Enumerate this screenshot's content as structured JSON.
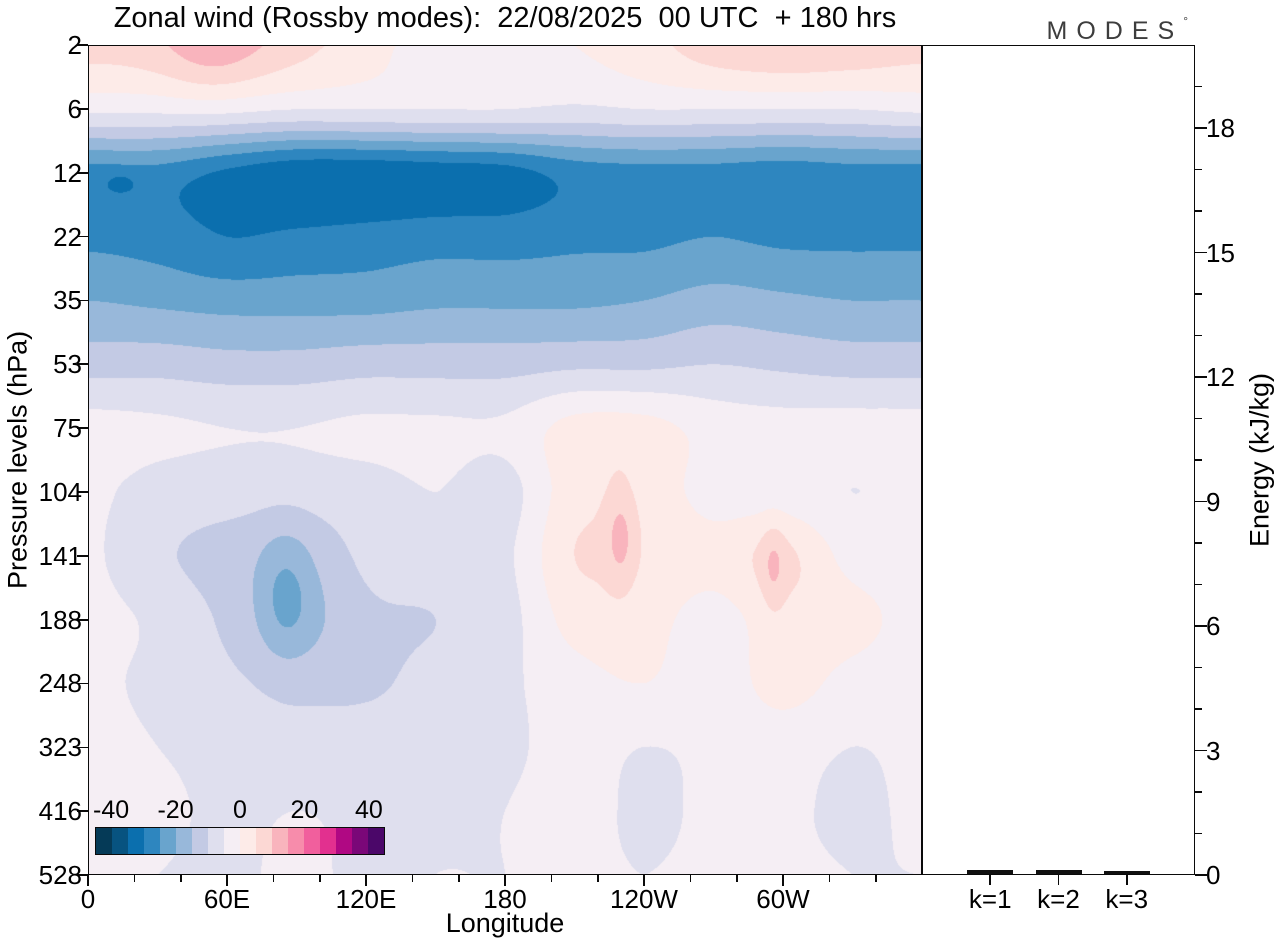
{
  "title": "Zonal wind (Rossby modes):  22/08/2025  00 UTC  + 180 hrs",
  "logo": {
    "text": "MODES",
    "mark": "°"
  },
  "axes": {
    "pressure": {
      "label": "Pressure levels (hPa)",
      "tick_labels": [
        "2",
        "6",
        "12",
        "22",
        "35",
        "53",
        "75",
        "104",
        "141",
        "188",
        "248",
        "323",
        "416",
        "528"
      ]
    },
    "longitude": {
      "label": "Longitude",
      "major_ticks": [
        {
          "deg": 0,
          "label": "0"
        },
        {
          "deg": 60,
          "label": "60E"
        },
        {
          "deg": 120,
          "label": "120E"
        },
        {
          "deg": 180,
          "label": "180"
        },
        {
          "deg": 240,
          "label": "120W"
        },
        {
          "deg": 300,
          "label": "60W"
        }
      ],
      "minor_tick_degs": [
        20,
        40,
        80,
        100,
        140,
        160,
        200,
        220,
        260,
        280,
        320,
        340
      ],
      "range_deg": [
        0,
        360
      ]
    },
    "energy": {
      "label": "Energy (kJ/kg)",
      "major_ticks": [
        0,
        3,
        6,
        9,
        12,
        15,
        18
      ],
      "minor_step": 1,
      "range": [
        0,
        20
      ]
    }
  },
  "colorbar": {
    "tick_labels": [
      "-40",
      "-20",
      "0",
      "20",
      "40"
    ],
    "tick_values": [
      -40,
      -20,
      0,
      20,
      40
    ],
    "min": -45,
    "max": 45,
    "step": 5,
    "colors": [
      "#053a57",
      "#075380",
      "#0b6fae",
      "#2e86bf",
      "#69a4cd",
      "#98b8da",
      "#c3cae4",
      "#dfdfee",
      "#f5eef4",
      "#fdebe8",
      "#fcd8d4",
      "#f9b4bd",
      "#f78cab",
      "#f15f9d",
      "#e2308f",
      "#b00883",
      "#7a0778",
      "#4b0769"
    ]
  },
  "chart_data": {
    "type": "heatmap",
    "title": "Zonal wind (Rossby modes):  22/08/2025  00 UTC  + 180 hrs",
    "xlabel": "Longitude",
    "ylabel": "Pressure levels (hPa)",
    "x_deg": [
      0,
      30,
      60,
      90,
      120,
      150,
      180,
      210,
      240,
      270,
      300,
      330,
      360
    ],
    "pressure_levels_hPa": [
      2,
      6,
      12,
      22,
      35,
      53,
      75,
      104,
      141,
      188,
      248,
      323,
      416,
      528
    ],
    "contour_interval": 5,
    "contour_range": [
      -45,
      45
    ],
    "wind_grid": [
      [
        7,
        8,
        11,
        7,
        2,
        -2,
        -2,
        0,
        3,
        8,
        10,
        9,
        7
      ],
      [
        -4,
        -4,
        -4,
        -5,
        -5,
        -5,
        -5,
        -6,
        -5,
        -5,
        -5,
        -5,
        -4
      ],
      [
        -27,
        -27,
        -31,
        -34,
        -34,
        -33,
        -32,
        -28,
        -27,
        -27,
        -28,
        -27,
        -27
      ],
      [
        -26,
        -27,
        -30,
        -29,
        -28,
        -27,
        -27,
        -26,
        -26,
        -25,
        -26,
        -26,
        -26
      ],
      [
        -20,
        -21,
        -22,
        -22,
        -22,
        -21,
        -21,
        -21,
        -20,
        -18,
        -19,
        -20,
        -20
      ],
      [
        -12,
        -12,
        -13,
        -13,
        -12,
        -12,
        -12,
        -11,
        -11,
        -10,
        -11,
        -12,
        -12
      ],
      [
        -3,
        -4,
        -5,
        -5,
        -4,
        -4,
        -4,
        2,
        2,
        -2,
        -3,
        -3,
        -3
      ],
      [
        -4,
        -7,
        -8,
        -8,
        -7,
        -5,
        -7,
        3,
        3,
        -2,
        -3,
        -5,
        -4
      ],
      [
        -4,
        -9,
        -12,
        -14,
        -9,
        -7,
        -6,
        5,
        4,
        2,
        6,
        -2,
        -4
      ],
      [
        -3,
        -6,
        -11,
        -16,
        -11,
        -10,
        -7,
        2,
        2,
        -2,
        3,
        2,
        -3
      ],
      [
        -4,
        -6,
        -9,
        -11,
        -11,
        -8,
        -6,
        -2,
        0,
        -3,
        2,
        -2,
        -4
      ],
      [
        -4,
        -5,
        -7,
        -8,
        -7,
        -6,
        -6,
        -3,
        -5,
        -4,
        -3,
        -5,
        -4
      ],
      [
        -4,
        -4,
        -6,
        -5,
        -6,
        -6,
        -5,
        -3,
        -6,
        -4,
        -4,
        -6,
        -4
      ],
      [
        -5,
        -5,
        -6,
        -4,
        -6,
        -5,
        -5,
        -4,
        -5,
        -4,
        -4,
        -5,
        -5
      ]
    ],
    "anomalies": [
      {
        "lon": 85,
        "row": 8.6,
        "amp": -6,
        "sigma_lon": 8,
        "sigma_row": 0.7
      },
      {
        "lon": 230,
        "row": 7.7,
        "amp": 7,
        "sigma_lon": 4.5,
        "sigma_row": 0.55
      },
      {
        "lon": 296,
        "row": 8.2,
        "amp": 5,
        "sigma_lon": 3.5,
        "sigma_row": 0.5
      },
      {
        "lon": 14,
        "row": 2.15,
        "amp": -3.5,
        "sigma_lon": 5,
        "sigma_row": 0.12
      },
      {
        "lon": 50,
        "row": 0,
        "amp": 3,
        "sigma_lon": 14,
        "sigma_row": 0.6
      }
    ],
    "energy_bars": {
      "type": "bar",
      "categories": [
        "k=1",
        "k=2",
        "k=3"
      ],
      "values": [
        0.1,
        0.09,
        0.08
      ],
      "ylabel": "Energy (kJ/kg)",
      "ylim": [
        0,
        20
      ]
    }
  }
}
